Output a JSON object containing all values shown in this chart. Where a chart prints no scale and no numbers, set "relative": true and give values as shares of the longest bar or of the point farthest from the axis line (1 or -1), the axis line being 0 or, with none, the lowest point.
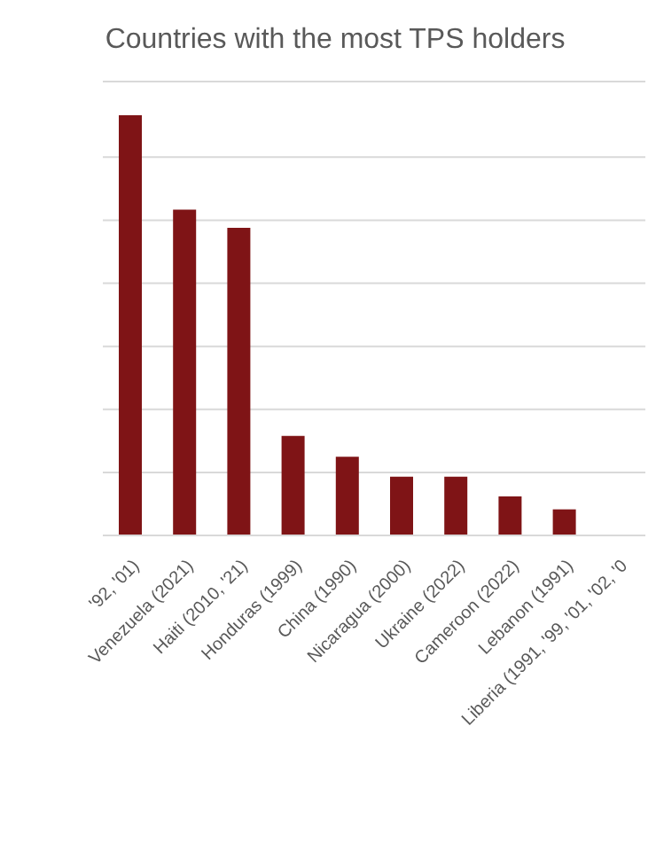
{
  "chart_data": {
    "type": "bar",
    "title": "Countries with the most TPS holders",
    "relative": true,
    "grid": "y",
    "color": "#7f1416",
    "categories": [
      "'92, '01)",
      "Venezuela (2021)",
      "Haiti (2010, '21)",
      "Honduras (1999)",
      "China (1990)",
      "Nicaragua (2000)",
      "Ukraine (2022)",
      "Cameroon (2022)",
      "Lebanon (1991)",
      "Liberia (1991, '99, '01, '02, '0"
    ],
    "values": [
      1,
      0.775,
      0.732,
      0.237,
      0.187,
      0.14,
      0.14,
      0.093,
      0.062,
      null
    ]
  }
}
